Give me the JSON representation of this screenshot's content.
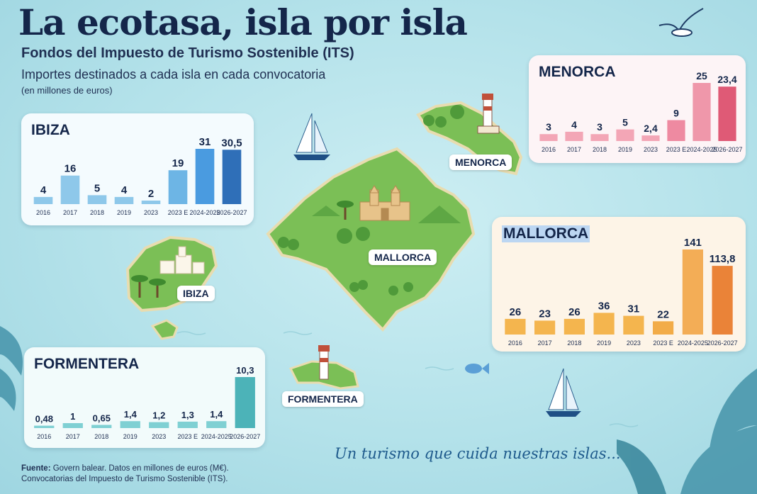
{
  "title": "La ecotasa, isla por isla",
  "subtitle": "Fondos del Impuesto de Turismo Sostenible (ITS)",
  "subtitle2": "Importes destinados a cada isla en cada convocatoria",
  "units": "(en millones de euros)",
  "map_labels": {
    "menorca": "MENORCA",
    "mallorca": "MALLORCA",
    "ibiza": "IBIZA",
    "formentera": "FORMENTERA"
  },
  "footer": {
    "source_label": "Fuente:",
    "source_text": "Govern balear. Datos en millones de euros (M€).",
    "line2": "Convocatorias del Impuesto de Turismo Sostenible (ITS)."
  },
  "tagline": "Un turismo que cuida nuestras islas...",
  "icons": [
    "seagull-icon",
    "sailboat-icon",
    "lighthouse-icon",
    "palm-tree-icon",
    "cathedral-icon",
    "fish-icon",
    "palm-leaf-icon"
  ],
  "chart_data": [
    {
      "type": "bar",
      "title": "IBIZA",
      "categories": [
        "2016",
        "2017",
        "2018",
        "2019",
        "2023",
        "2023 E",
        "2024-2025",
        "2026-2027"
      ],
      "values": [
        4,
        16,
        5,
        4,
        2,
        19,
        31,
        30.5
      ],
      "labels": [
        "4",
        "16",
        "5",
        "4",
        "2",
        "19",
        "31",
        "30,5"
      ],
      "ylim": [
        0,
        31
      ],
      "colors": [
        "#8ec8ea",
        "#8ec8ea",
        "#8ec8ea",
        "#8ec8ea",
        "#8ec8ea",
        "#6db5e5",
        "#4a9be0",
        "#2f6fb8"
      ],
      "background": "#f4fbfe"
    },
    {
      "type": "bar",
      "title": "MENORCA",
      "categories": [
        "2016",
        "2017",
        "2018",
        "2019",
        "2023",
        "2023 E",
        "2024-2025",
        "2026-2027"
      ],
      "values": [
        3,
        4,
        3,
        5,
        2.4,
        9,
        25,
        23.4
      ],
      "labels": [
        "3",
        "4",
        "3",
        "5",
        "2,4",
        "9",
        "25",
        "23,4"
      ],
      "ylim": [
        0,
        25
      ],
      "colors": [
        "#f3a6b6",
        "#f3a6b6",
        "#f3a6b6",
        "#f3a6b6",
        "#f3a6b6",
        "#ee8aa1",
        "#ef97aa",
        "#df5a76"
      ],
      "background": "#fdf4f6"
    },
    {
      "type": "bar",
      "title": "MALLORCA",
      "categories": [
        "2016",
        "2017",
        "2018",
        "2019",
        "2023",
        "2023 E",
        "2024-2025",
        "2026-2027"
      ],
      "values": [
        26,
        23,
        26,
        36,
        31,
        22,
        141,
        113.8
      ],
      "labels": [
        "26",
        "23",
        "26",
        "36",
        "31",
        "22",
        "141",
        "113,8"
      ],
      "ylim": [
        0,
        141
      ],
      "colors": [
        "#f4b54e",
        "#f4b54e",
        "#f4b54e",
        "#f4b54e",
        "#f4b54e",
        "#f2ac48",
        "#f3ad56",
        "#ea8338"
      ],
      "background": "#fdf4e7"
    },
    {
      "type": "bar",
      "title": "FORMENTERA",
      "categories": [
        "2016",
        "2017",
        "2018",
        "2019",
        "2023",
        "2023 E",
        "2024-2025",
        "2026-2027"
      ],
      "values": [
        0.48,
        1,
        0.65,
        1.4,
        1.2,
        1.3,
        1.4,
        10.3
      ],
      "labels": [
        "0,48",
        "1",
        "0,65",
        "1,4",
        "1,2",
        "1,3",
        "1,4",
        "10,3"
      ],
      "ylim": [
        0,
        10.3
      ],
      "colors": [
        "#7fd0d3",
        "#7fd0d3",
        "#7fd0d3",
        "#7fd0d3",
        "#7fd0d3",
        "#7fd0d3",
        "#7fd0d3",
        "#4cb3b8"
      ],
      "background": "#f2fbfb"
    }
  ]
}
